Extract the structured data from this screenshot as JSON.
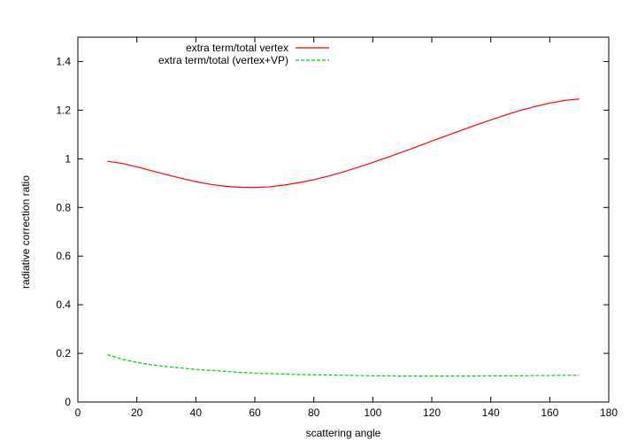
{
  "chart_data": {
    "type": "line",
    "title": "",
    "xlabel": "scattering angle",
    "ylabel": "radiative correction ratio",
    "xlim": [
      0,
      180
    ],
    "ylim": [
      0,
      1.5
    ],
    "grid": false,
    "legend_position": "top-center",
    "x_ticks": [
      0,
      20,
      40,
      60,
      80,
      100,
      120,
      140,
      160,
      180
    ],
    "x_tick_labels": [
      "0",
      "20",
      "40",
      "60",
      "80",
      "100",
      "120",
      "140",
      "160",
      "180"
    ],
    "y_ticks": [
      0,
      0.2,
      0.4,
      0.6,
      0.8,
      1,
      1.2,
      1.4
    ],
    "y_tick_labels": [
      "0",
      "0.2",
      "0.4",
      "0.6",
      "0.8",
      "1",
      "1.2",
      "1.4"
    ],
    "series": [
      {
        "name": "extra term/total vertex",
        "color": "#ff0000",
        "dash": "solid",
        "x": [
          10,
          15,
          20,
          25,
          30,
          35,
          40,
          45,
          50,
          55,
          60,
          65,
          70,
          75,
          80,
          85,
          90,
          95,
          100,
          105,
          110,
          115,
          120,
          125,
          130,
          135,
          140,
          145,
          150,
          155,
          160,
          165,
          170
        ],
        "y": [
          0.99,
          0.981,
          0.967,
          0.951,
          0.935,
          0.92,
          0.906,
          0.895,
          0.887,
          0.883,
          0.882,
          0.885,
          0.892,
          0.902,
          0.914,
          0.929,
          0.946,
          0.965,
          0.985,
          1.006,
          1.028,
          1.05,
          1.073,
          1.095,
          1.117,
          1.139,
          1.16,
          1.18,
          1.199,
          1.215,
          1.229,
          1.24,
          1.246
        ]
      },
      {
        "name": "extra term/total (vertex+VP)",
        "color": "#00cc00",
        "dash": "dashed",
        "x": [
          10,
          15,
          20,
          25,
          30,
          35,
          40,
          45,
          50,
          55,
          60,
          65,
          70,
          75,
          80,
          85,
          90,
          95,
          100,
          105,
          110,
          115,
          120,
          125,
          130,
          135,
          140,
          145,
          150,
          155,
          160,
          165,
          170
        ],
        "y": [
          0.195,
          0.176,
          0.163,
          0.153,
          0.146,
          0.14,
          0.134,
          0.13,
          0.126,
          0.122,
          0.119,
          0.117,
          0.115,
          0.113,
          0.112,
          0.111,
          0.11,
          0.109,
          0.108,
          0.108,
          0.107,
          0.107,
          0.107,
          0.107,
          0.107,
          0.107,
          0.108,
          0.108,
          0.108,
          0.109,
          0.109,
          0.11,
          0.11
        ]
      }
    ]
  }
}
